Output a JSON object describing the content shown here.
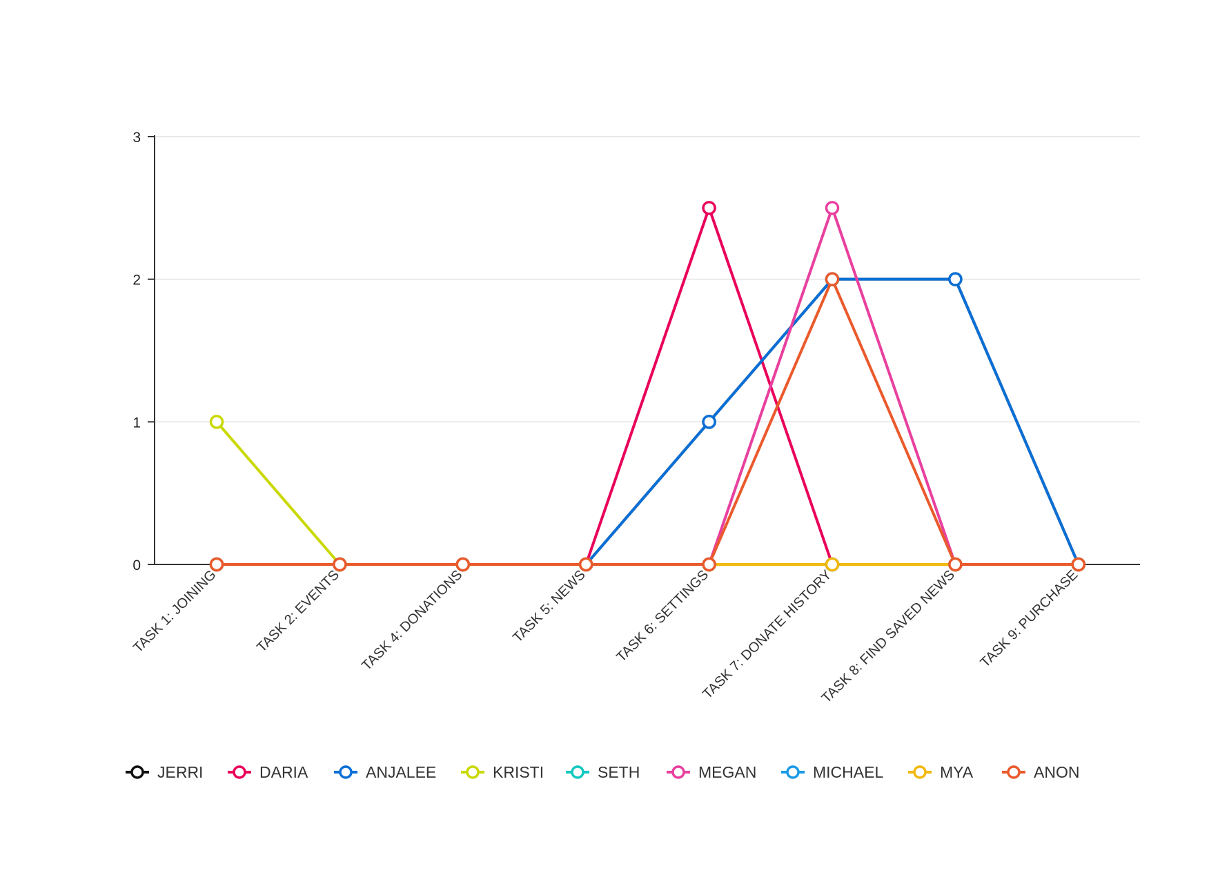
{
  "chart_data": {
    "type": "line",
    "categories": [
      "TASK 1: JOINING",
      "TASK 2: EVENTS",
      "TASK 4: DONATIONS",
      "TASK 5: NEWS",
      "TASK 6: SETTINGS",
      "TASK 7: DONATE HISTORY",
      "TASK 8: FIND SAVED NEWS",
      "TASK 9: PURCHASE"
    ],
    "ylim": [
      0,
      3
    ],
    "yticks": [
      0,
      1,
      2,
      3
    ],
    "grid": "horizontal",
    "legend_position": "bottom",
    "series": [
      {
        "name": "JERRI",
        "color": "#111111",
        "values": [
          0,
          0,
          0,
          0,
          1,
          2,
          2,
          0
        ]
      },
      {
        "name": "DARIA",
        "color": "#e8005a",
        "values": [
          0,
          0,
          0,
          0,
          2.5,
          0,
          0,
          0
        ]
      },
      {
        "name": "ANJALEE",
        "color": "#0a6fd6",
        "values": [
          0,
          0,
          0,
          0,
          1,
          2,
          2,
          0
        ]
      },
      {
        "name": "KRISTI",
        "color": "#c9d800",
        "values": [
          1,
          0,
          0,
          0,
          0,
          0,
          0,
          0
        ]
      },
      {
        "name": "SETH",
        "color": "#14c8c0",
        "values": [
          0,
          0,
          0,
          0,
          0,
          0,
          0,
          0
        ]
      },
      {
        "name": "MEGAN",
        "color": "#e8409e",
        "values": [
          0,
          0,
          0,
          0,
          0,
          2.5,
          0,
          0
        ]
      },
      {
        "name": "MICHAEL",
        "color": "#1a9be6",
        "values": [
          0,
          0,
          0,
          0,
          0,
          0,
          0,
          0
        ]
      },
      {
        "name": "MYA",
        "color": "#f2b90e",
        "values": [
          0,
          0,
          0,
          0,
          0,
          0,
          0,
          0
        ]
      },
      {
        "name": "ANON",
        "color": "#ea5a2c",
        "values": [
          0,
          0,
          0,
          0,
          0,
          2,
          0,
          0
        ]
      }
    ]
  }
}
